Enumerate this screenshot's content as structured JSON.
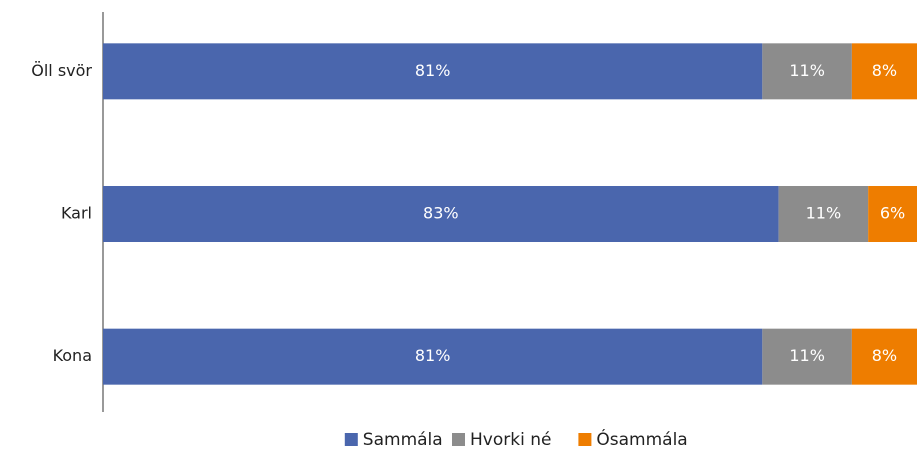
{
  "chart_data": {
    "type": "stacked_barh",
    "categories": [
      "Öll svör",
      "Karl",
      "Kona"
    ],
    "series": [
      {
        "name": "Sammála",
        "color": "#4a66ad",
        "values": [
          81,
          83,
          81
        ],
        "value_labels": [
          "81%",
          "83%",
          "81%"
        ]
      },
      {
        "name": "Hvorki né",
        "color": "#8c8c8c",
        "values": [
          11,
          11,
          11
        ],
        "value_labels": [
          "11%",
          "11%",
          "11%"
        ]
      },
      {
        "name": "Ósammála",
        "color": "#ee7d00",
        "values": [
          8,
          6,
          8
        ],
        "value_labels": [
          "8%",
          "6%",
          "8%"
        ]
      }
    ],
    "xlim": [
      0,
      100
    ],
    "legend": "bottom"
  }
}
